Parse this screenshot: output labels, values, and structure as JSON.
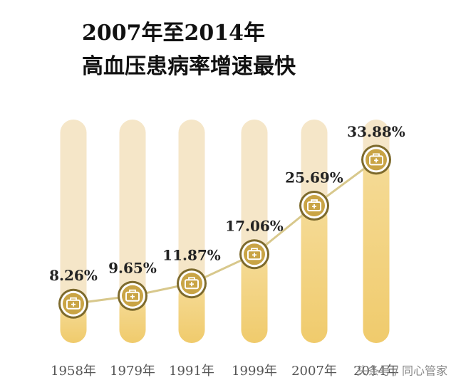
{
  "chart_data": {
    "type": "line",
    "title": [
      "2007年至2014年",
      "高血压患病率增速最快"
    ],
    "categories": [
      "1958年",
      "1979年",
      "1991年",
      "1999年",
      "2007年",
      "2014年"
    ],
    "values": [
      8.26,
      9.65,
      11.87,
      17.06,
      25.69,
      33.88
    ],
    "value_labels": [
      "8.26%",
      "9.65%",
      "11.87%",
      "17.06%",
      "25.69%",
      "33.88%"
    ],
    "ylim": [
      0,
      40
    ],
    "color": "#d8c88c",
    "watermark": "头条号 / 同心管家"
  }
}
